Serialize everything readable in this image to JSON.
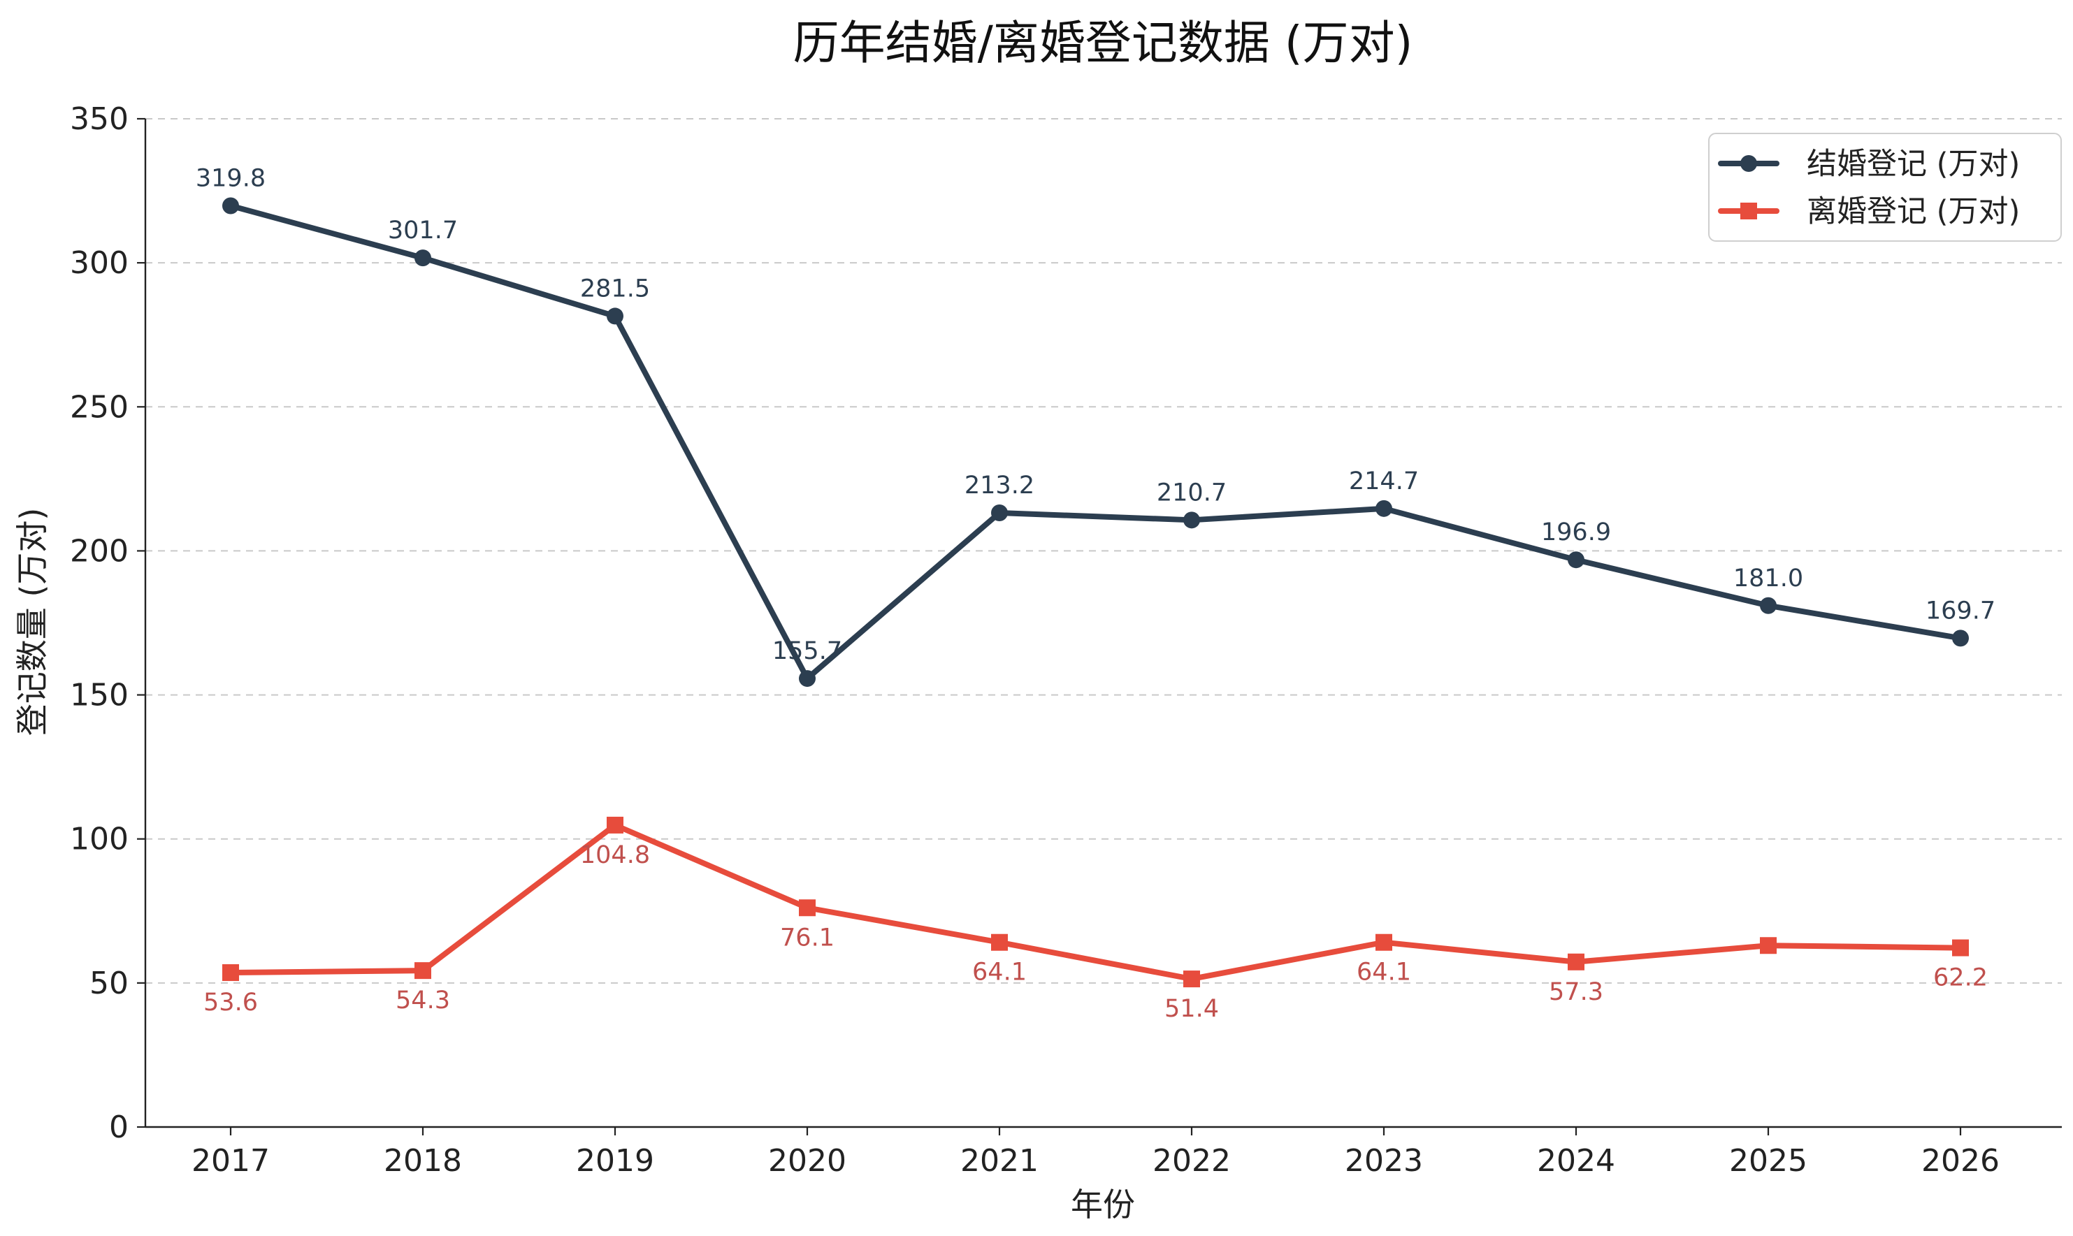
{
  "chart_data": {
    "type": "line",
    "title": "历年结婚/离婚登记数据 (万对)",
    "xlabel": "年份",
    "ylabel": "登记数量 (万对)",
    "x": [
      "2017",
      "2018",
      "2019",
      "2020",
      "2021",
      "2022",
      "2023",
      "2024",
      "2025",
      "2026"
    ],
    "ylim": [
      0,
      350
    ],
    "yticks": [
      0,
      50,
      100,
      150,
      200,
      250,
      300,
      350
    ],
    "grid": "horizontal dashed",
    "legend_position": "top-right",
    "series": [
      {
        "name": "结婚登记 (万对)",
        "color": "#2c3e50",
        "marker": "circle",
        "values": [
          319.8,
          301.7,
          281.5,
          155.7,
          213.2,
          210.7,
          214.7,
          196.9,
          181.0,
          169.7
        ],
        "data_labels": [
          "319.8",
          "301.7",
          "281.5",
          "155.7",
          "213.2",
          "210.7",
          "214.7",
          "196.9",
          "181.0",
          "169.7"
        ],
        "label_position": "above"
      },
      {
        "name": "离婚登记 (万对)",
        "color": "#e74c3c",
        "label_color": "#c0504d",
        "marker": "square",
        "values": [
          53.6,
          54.3,
          104.8,
          76.1,
          64.1,
          51.4,
          64.1,
          57.3,
          63.0,
          62.2
        ],
        "data_labels": [
          "53.6",
          "54.3",
          "104.8",
          "76.1",
          "64.1",
          "51.4",
          "64.1",
          "57.3",
          "",
          "62.2"
        ],
        "label_position": "below"
      }
    ]
  }
}
